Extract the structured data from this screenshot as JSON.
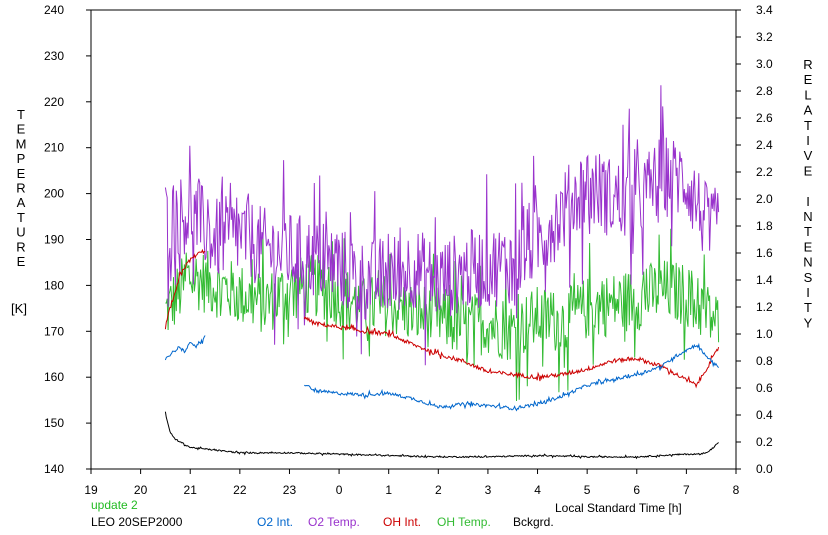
{
  "chart_data": {
    "type": "line",
    "title": "",
    "xlabel": "Local Standard Time [h]",
    "ylabel_left_letters": [
      "T",
      "E",
      "M",
      "P",
      "E",
      "R",
      "A",
      "T",
      "U",
      "R",
      "E"
    ],
    "ylabel_left_unit": "[K]",
    "ylabel_right_words": [
      [
        "R",
        "E",
        "L",
        "A",
        "T",
        "I",
        "V",
        "E"
      ],
      [
        "I",
        "N",
        "T",
        "E",
        "N",
        "S",
        "I",
        "T",
        "Y"
      ]
    ],
    "x_ticks": [
      "19",
      "20",
      "21",
      "22",
      "23",
      "0",
      "1",
      "2",
      "3",
      "4",
      "5",
      "6",
      "7",
      "8"
    ],
    "xlim": [
      19,
      32
    ],
    "ylim_left": [
      140,
      240
    ],
    "ylim_right": [
      0.0,
      3.4
    ],
    "y_ticks_left": [
      "140",
      "150",
      "160",
      "170",
      "180",
      "190",
      "200",
      "210",
      "220",
      "230",
      "240"
    ],
    "y_ticks_right": [
      "0.0",
      "0.2",
      "0.4",
      "0.6",
      "0.8",
      "1.0",
      "1.2",
      "1.4",
      "1.6",
      "1.8",
      "2.0",
      "2.2",
      "2.4",
      "2.6",
      "2.8",
      "3.0",
      "3.2",
      "3.4"
    ],
    "grid": false,
    "annotations": {
      "update": "update 2",
      "station": "LEO 20SEP2000"
    },
    "colors": {
      "o2int": "#0066cc",
      "o2temp": "#9933cc",
      "ohint": "#cc0000",
      "ohtemp": "#33bb33",
      "bckgrd": "#000000",
      "update": "#22bb22",
      "axis": "#000000"
    },
    "series": [
      {
        "name": "O2 Int.",
        "axis": "right",
        "color": "#0066cc",
        "segments": [
          {
            "x": [
              20.5,
              20.6,
              20.7,
              20.8,
              20.9,
              21.0,
              21.1,
              21.2,
              21.3
            ],
            "y": [
              0.82,
              0.85,
              0.88,
              0.91,
              0.86,
              0.95,
              0.9,
              0.93,
              0.98
            ]
          },
          {
            "x": [
              23.3,
              23.5,
              24.0,
              24.5,
              25.0,
              25.5,
              26.0,
              26.5,
              27.0,
              27.5,
              28.0,
              28.5,
              29.0,
              29.5,
              30.0,
              30.5,
              30.8,
              31.2,
              31.5,
              31.65
            ],
            "y": [
              0.63,
              0.58,
              0.56,
              0.55,
              0.56,
              0.52,
              0.46,
              0.48,
              0.47,
              0.45,
              0.48,
              0.54,
              0.62,
              0.66,
              0.7,
              0.76,
              0.84,
              0.92,
              0.8,
              0.76
            ]
          }
        ]
      },
      {
        "name": "O2 Temp.",
        "axis": "left",
        "color": "#9933cc",
        "segments": [
          {
            "x": [
              20.5,
              21.0,
              21.5,
              22.0,
              22.5,
              23.0,
              23.5,
              24.0,
              24.5,
              25.0,
              25.5,
              26.0,
              26.5,
              27.0,
              27.5,
              28.0,
              28.5,
              29.0,
              29.5,
              30.0,
              30.5,
              31.0,
              31.5,
              31.65
            ],
            "y": [
              194,
              196,
              190,
              191,
              188,
              187,
              186,
              184,
              181,
              182,
              184,
              181,
              183,
              184,
              185,
              190,
              196,
              202,
              199,
              198,
              204,
              203,
              191,
              194
            ]
          }
        ]
      },
      {
        "name": "OH Int.",
        "axis": "right",
        "color": "#cc0000",
        "segments": [
          {
            "x": [
              20.5,
              20.6,
              20.7,
              20.8,
              20.9,
              21.0,
              21.1,
              21.2,
              21.3
            ],
            "y": [
              1.05,
              1.2,
              1.3,
              1.45,
              1.5,
              1.55,
              1.58,
              1.6,
              1.62
            ]
          },
          {
            "x": [
              23.3,
              23.5,
              24.0,
              24.5,
              25.0,
              25.5,
              26.0,
              26.5,
              27.0,
              27.5,
              28.0,
              28.5,
              29.0,
              29.5,
              30.0,
              30.5,
              30.8,
              31.2,
              31.5,
              31.65
            ],
            "y": [
              1.12,
              1.08,
              1.05,
              1.02,
              1.0,
              0.92,
              0.85,
              0.8,
              0.72,
              0.7,
              0.68,
              0.7,
              0.74,
              0.8,
              0.82,
              0.76,
              0.7,
              0.62,
              0.8,
              0.9
            ]
          }
        ]
      },
      {
        "name": "OH Temp.",
        "axis": "left",
        "color": "#33bb33",
        "segments": [
          {
            "x": [
              20.5,
              21.0,
              21.5,
              22.0,
              22.5,
              23.0,
              23.5,
              24.0,
              24.5,
              25.0,
              25.5,
              26.0,
              26.5,
              27.0,
              27.5,
              28.0,
              28.5,
              29.0,
              29.5,
              30.0,
              30.5,
              31.0,
              31.5,
              31.65
            ],
            "y": [
              174,
              182,
              180,
              178,
              176,
              179,
              180,
              178,
              175,
              176,
              174,
              173,
              171,
              172,
              170,
              173,
              172,
              175,
              176,
              177,
              179,
              178,
              173,
              172
            ]
          }
        ]
      },
      {
        "name": "Bckgrd.",
        "axis": "right",
        "color": "#000000",
        "segments": [
          {
            "x": [
              20.5,
              20.55,
              20.6,
              20.7,
              20.8,
              21.0,
              21.5,
              22.0,
              23.0,
              24.0,
              25.0,
              26.0,
              27.0,
              28.0,
              29.0,
              30.0,
              30.5,
              31.0,
              31.3,
              31.5,
              31.65
            ],
            "y": [
              0.42,
              0.33,
              0.27,
              0.22,
              0.2,
              0.16,
              0.14,
              0.12,
              0.12,
              0.11,
              0.1,
              0.09,
              0.09,
              0.1,
              0.09,
              0.09,
              0.1,
              0.11,
              0.11,
              0.14,
              0.2
            ]
          }
        ]
      }
    ]
  }
}
